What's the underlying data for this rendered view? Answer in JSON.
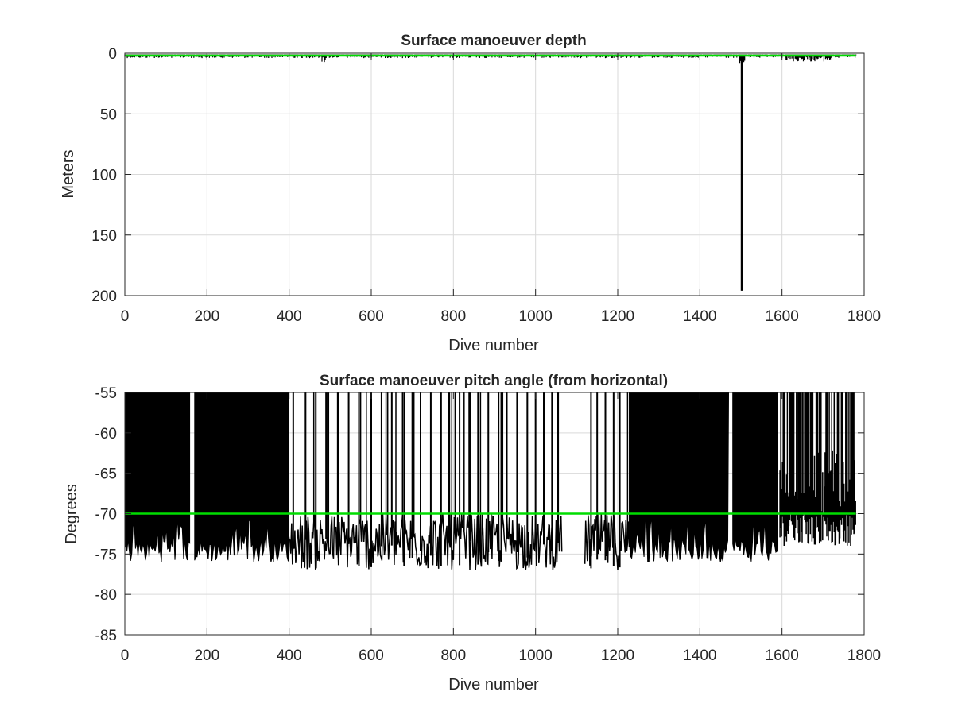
{
  "chart_data": [
    {
      "type": "line",
      "title": "Surface manoeuver depth",
      "xlabel": "Dive number",
      "ylabel": "Meters",
      "xlim": [
        0,
        1800
      ],
      "ylim": [
        0,
        200
      ],
      "y_reversed": true,
      "grid": true,
      "xticks": [
        "0",
        "200",
        "400",
        "600",
        "800",
        "1000",
        "1200",
        "1400",
        "1600",
        "1800"
      ],
      "yticks": [
        "0",
        "50",
        "100",
        "150",
        "200"
      ],
      "colors": {
        "data": "#000000",
        "reference": "#00dd00",
        "grid": "#d9d9d9"
      },
      "reference_value": 2,
      "segments": [
        {
          "x": [
            0,
            1780
          ],
          "base": 2,
          "min": 1,
          "max": 4
        },
        {
          "x": [
            480,
            490
          ],
          "base": 3,
          "min": 1,
          "max": 8
        },
        {
          "x": [
            1495,
            1510
          ],
          "base": 4,
          "min": 1,
          "max": 8
        },
        {
          "x": [
            1610,
            1720
          ],
          "base": 4,
          "min": 1,
          "max": 7
        }
      ],
      "spikes": [
        {
          "x": 1502,
          "y": 196
        }
      ]
    },
    {
      "type": "line",
      "title": "Surface manoeuver pitch angle (from horizontal)",
      "xlabel": "Dive number",
      "ylabel": "Degrees",
      "xlim": [
        0,
        1800
      ],
      "ylim": [
        -85,
        -55
      ],
      "grid": true,
      "xticks": [
        "0",
        "200",
        "400",
        "600",
        "800",
        "1000",
        "1200",
        "1400",
        "1600",
        "1800"
      ],
      "yticks": [
        "-55",
        "-60",
        "-65",
        "-70",
        "-75",
        "-80",
        "-85"
      ],
      "colors": {
        "data": "#000000",
        "reference": "#00dd00",
        "grid": "#d9d9d9"
      },
      "reference_value": -70,
      "gaps": [
        [
          158,
          170
        ],
        [
          1065,
          1120
        ]
      ],
      "filled_ranges": [
        [
          2,
          158
        ],
        [
          170,
          398
        ],
        [
          1228,
          1470
        ],
        [
          1480,
          1590
        ]
      ],
      "dense_ranges": [
        [
          1595,
          1780
        ]
      ],
      "sparse_ranges": [
        [
          398,
          1065
        ],
        [
          1120,
          1228
        ]
      ],
      "floor_range": [
        -77,
        -70
      ],
      "filled_floor": [
        -76,
        -73
      ],
      "dense_floor": [
        -74,
        -70
      ],
      "spike_count": 40,
      "dense_spike_count": 18
    }
  ]
}
